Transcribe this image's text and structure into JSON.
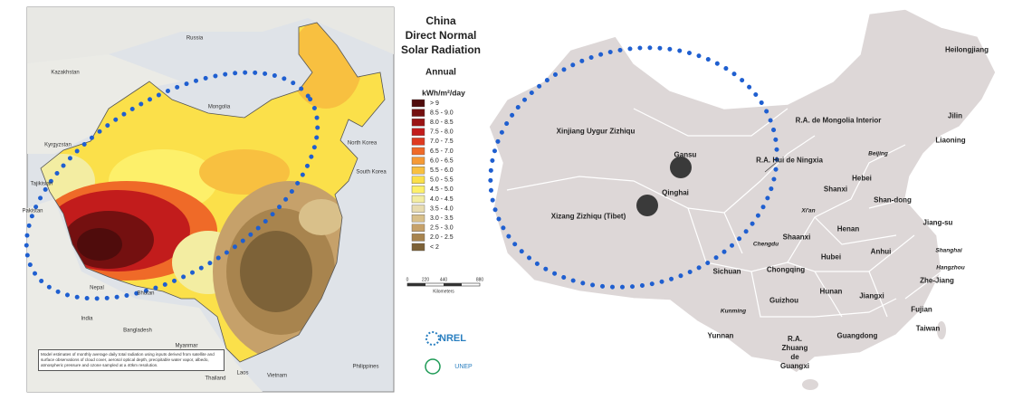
{
  "left_map": {
    "title_lines": [
      "China",
      "Direct Normal",
      "Solar Radiation"
    ],
    "period": "Annual",
    "unit": "kWh/m²/day",
    "legend": [
      {
        "label": "> 9",
        "color": "#4f0c0c"
      },
      {
        "label": "8.5 - 9.0",
        "color": "#741010"
      },
      {
        "label": "8.0 - 8.5",
        "color": "#9a1414"
      },
      {
        "label": "7.5 - 8.0",
        "color": "#c21c1c"
      },
      {
        "label": "7.0 - 7.5",
        "color": "#de3a20"
      },
      {
        "label": "6.5 - 7.0",
        "color": "#ef6a28"
      },
      {
        "label": "6.0 - 6.5",
        "color": "#f59a35"
      },
      {
        "label": "5.5 - 6.0",
        "color": "#f8c040"
      },
      {
        "label": "5.0 - 5.5",
        "color": "#fbe04a"
      },
      {
        "label": "4.5 - 5.0",
        "color": "#fdf06a"
      },
      {
        "label": "4.0 - 4.5",
        "color": "#f3eda2"
      },
      {
        "label": "3.5 - 4.0",
        "color": "#e8dcb0"
      },
      {
        "label": "3.0 - 3.5",
        "color": "#d9c08a"
      },
      {
        "label": "2.5 - 3.0",
        "color": "#c6a16a"
      },
      {
        "label": "2.0 - 2.5",
        "color": "#a8844e"
      },
      {
        "label": "< 2",
        "color": "#7d6238"
      }
    ],
    "scale_labels": [
      "0",
      "220",
      "440",
      "880"
    ],
    "scale_unit": "Kilometers",
    "countries": [
      "Russia",
      "Kazakhstan",
      "Mongolia",
      "Kyrgyzstan",
      "Tajikistan",
      "Pakistan",
      "Nepal",
      "India",
      "Bhutan",
      "Bangladesh",
      "Myanmar",
      "Thailand",
      "Laos",
      "Vietnam",
      "Philippines",
      "North Korea",
      "South Korea"
    ],
    "logos": [
      "NREL",
      "UNEP"
    ],
    "note": "Model estimates of monthly average daily total radiation using inputs derived from satellite and surface observations of cloud cover, aerosol optical depth, precipitable water vapor, albedo, atmospheric pressure and ozone sampled at a 40km resolution."
  },
  "right_map": {
    "labels": [
      "Heilongjiang",
      "Jilin",
      "Liaoning",
      "R.A. de Mongolia Interior",
      "Beijing",
      "Hebei",
      "Xinjiang Uygur Zizhiqu",
      "Gansu",
      "R.A. Hui de Ningxia",
      "Shanxi",
      "Shan-dong",
      "Qinghai",
      "Xi'an",
      "Henan",
      "Jiang-su",
      "Xizang Zizhiqu (Tibet)",
      "Shaanxi",
      "Anhui",
      "Shanghai",
      "Chengdu",
      "Hubei",
      "Hangzhou",
      "Zhe-Jiang",
      "Sichuan",
      "Chongqing",
      "Kunming",
      "Guizhou",
      "Hunan",
      "Jiangxi",
      "Fujian",
      "Taiwan",
      "Yunnan",
      "R.A. Zhuang de Guangxi",
      "Guangdong"
    ]
  }
}
